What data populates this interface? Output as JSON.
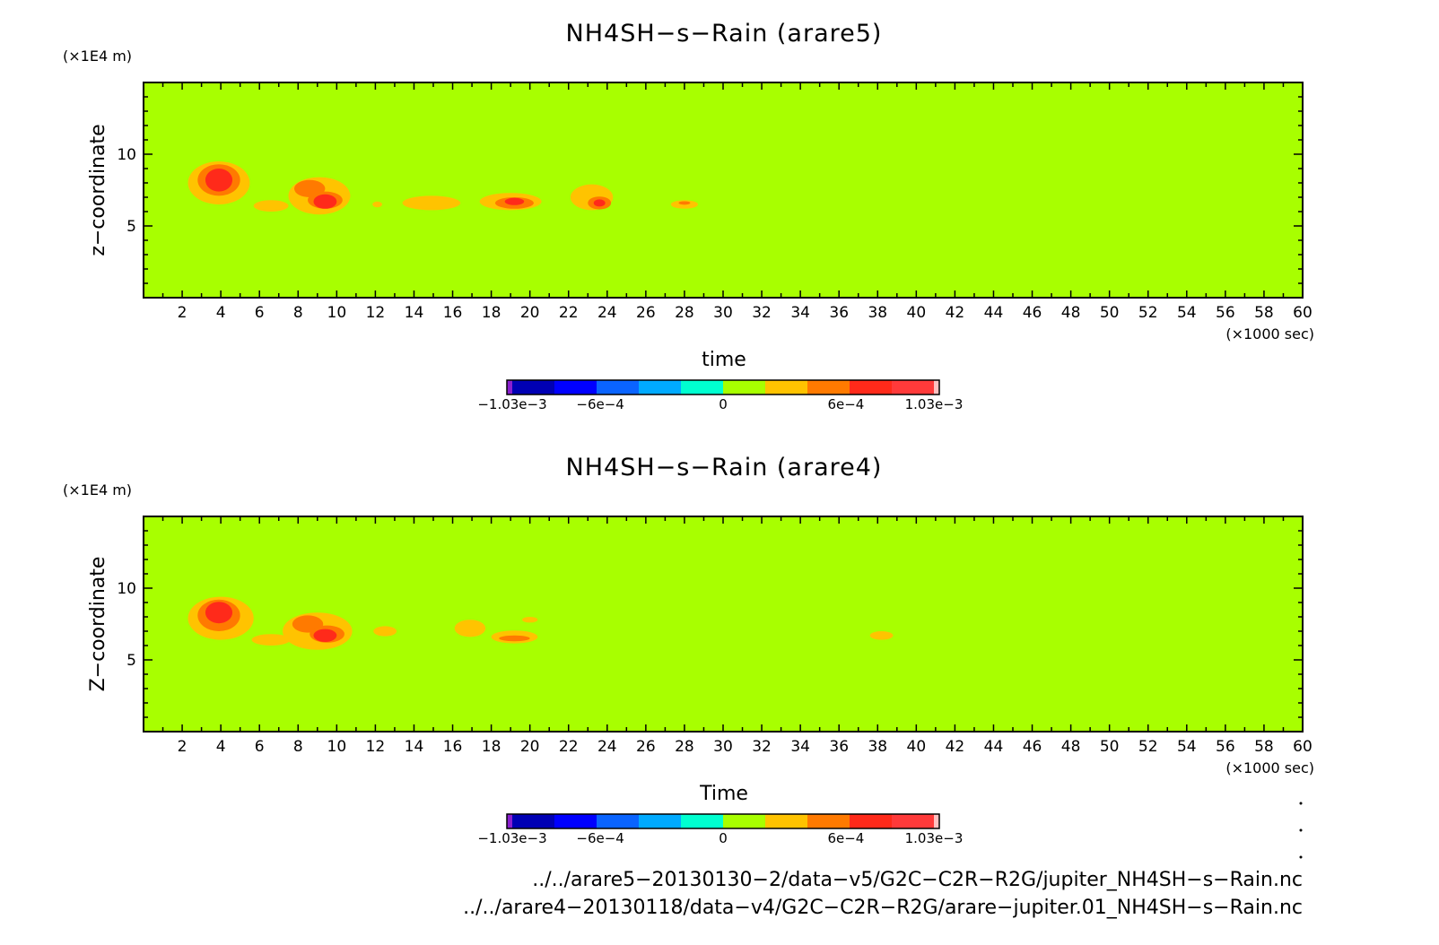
{
  "colors": {
    "background_field": "#a8ff00",
    "level_1": "#ffc300",
    "level_2": "#ff7a00",
    "level_3": "#ff2a1a",
    "level_4": "#e81b30"
  },
  "colorbar": {
    "colors": [
      "#8a1fcf",
      "#0000b4",
      "#0000ff",
      "#0a64ff",
      "#00aaff",
      "#00ffd0",
      "#a8ff00",
      "#ffc300",
      "#ff7a00",
      "#ff2a1a",
      "#ff3a3a",
      "#ffc0c0"
    ],
    "labels": [
      {
        "text": "−1.03e−3",
        "value": -0.00103
      },
      {
        "text": "−6e−4",
        "value": -0.0006
      },
      {
        "text": "0",
        "value": 0
      },
      {
        "text": "6e−4",
        "value": 0.0006
      },
      {
        "text": "1.03e−3",
        "value": 0.00103
      }
    ]
  },
  "chart_data": [
    {
      "type": "heatmap",
      "title": "NH4SH−s−Rain (arare5)",
      "xlabel": "time",
      "ylabel": "z−coordinate",
      "x_unit": "(×1000 sec)",
      "y_unit": "(×1E4 m)",
      "xlim": [
        0,
        60
      ],
      "ylim": [
        0,
        15
      ],
      "xticks": [
        2,
        4,
        6,
        8,
        10,
        12,
        14,
        16,
        18,
        20,
        22,
        24,
        26,
        28,
        30,
        32,
        34,
        36,
        38,
        40,
        42,
        44,
        46,
        48,
        50,
        52,
        54,
        56,
        58,
        60
      ],
      "yticks": [
        5,
        10
      ],
      "blobs": [
        {
          "level": 1,
          "x": 3.9,
          "y": 8.0,
          "rx": 1.6,
          "ry": 1.5
        },
        {
          "level": 2,
          "x": 3.9,
          "y": 8.2,
          "rx": 1.1,
          "ry": 1.1
        },
        {
          "level": 3,
          "x": 3.9,
          "y": 8.2,
          "rx": 0.7,
          "ry": 0.8
        },
        {
          "level": 1,
          "x": 6.6,
          "y": 6.4,
          "rx": 0.9,
          "ry": 0.4
        },
        {
          "level": 1,
          "x": 9.1,
          "y": 7.1,
          "rx": 1.6,
          "ry": 1.3
        },
        {
          "level": 2,
          "x": 8.6,
          "y": 7.6,
          "rx": 0.8,
          "ry": 0.6
        },
        {
          "level": 2,
          "x": 9.4,
          "y": 6.8,
          "rx": 0.9,
          "ry": 0.6
        },
        {
          "level": 3,
          "x": 9.4,
          "y": 6.7,
          "rx": 0.6,
          "ry": 0.5
        },
        {
          "level": 1,
          "x": 12.1,
          "y": 6.5,
          "rx": 0.25,
          "ry": 0.2
        },
        {
          "level": 1,
          "x": 14.9,
          "y": 6.6,
          "rx": 1.5,
          "ry": 0.5
        },
        {
          "level": 1,
          "x": 19.0,
          "y": 6.7,
          "rx": 1.6,
          "ry": 0.6
        },
        {
          "level": 2,
          "x": 19.2,
          "y": 6.6,
          "rx": 1.0,
          "ry": 0.4
        },
        {
          "level": 3,
          "x": 19.2,
          "y": 6.7,
          "rx": 0.5,
          "ry": 0.25
        },
        {
          "level": 1,
          "x": 23.2,
          "y": 7.0,
          "rx": 1.1,
          "ry": 0.9
        },
        {
          "level": 2,
          "x": 23.6,
          "y": 6.6,
          "rx": 0.6,
          "ry": 0.45
        },
        {
          "level": 3,
          "x": 23.6,
          "y": 6.6,
          "rx": 0.3,
          "ry": 0.25
        },
        {
          "level": 1,
          "x": 28.0,
          "y": 6.5,
          "rx": 0.7,
          "ry": 0.3
        },
        {
          "level": 2,
          "x": 28.0,
          "y": 6.6,
          "rx": 0.3,
          "ry": 0.12
        }
      ]
    },
    {
      "type": "heatmap",
      "title": "NH4SH−s−Rain (arare4)",
      "xlabel": "Time",
      "ylabel": "Z−coordinate",
      "x_unit": "(×1000 sec)",
      "y_unit": "(×1E4 m)",
      "xlim": [
        0,
        60
      ],
      "ylim": [
        0,
        15
      ],
      "xticks": [
        2,
        4,
        6,
        8,
        10,
        12,
        14,
        16,
        18,
        20,
        22,
        24,
        26,
        28,
        30,
        32,
        34,
        36,
        38,
        40,
        42,
        44,
        46,
        48,
        50,
        52,
        54,
        56,
        58,
        60
      ],
      "yticks": [
        5,
        10
      ],
      "blobs": [
        {
          "level": 1,
          "x": 4.0,
          "y": 7.9,
          "rx": 1.7,
          "ry": 1.5
        },
        {
          "level": 2,
          "x": 3.9,
          "y": 8.1,
          "rx": 1.1,
          "ry": 1.1
        },
        {
          "level": 3,
          "x": 3.9,
          "y": 8.3,
          "rx": 0.7,
          "ry": 0.75
        },
        {
          "level": 1,
          "x": 6.6,
          "y": 6.4,
          "rx": 1.0,
          "ry": 0.4
        },
        {
          "level": 1,
          "x": 9.0,
          "y": 7.0,
          "rx": 1.8,
          "ry": 1.3
        },
        {
          "level": 2,
          "x": 8.5,
          "y": 7.5,
          "rx": 0.8,
          "ry": 0.6
        },
        {
          "level": 2,
          "x": 9.5,
          "y": 6.8,
          "rx": 0.9,
          "ry": 0.6
        },
        {
          "level": 3,
          "x": 9.4,
          "y": 6.7,
          "rx": 0.6,
          "ry": 0.45
        },
        {
          "level": 1,
          "x": 12.5,
          "y": 7.0,
          "rx": 0.6,
          "ry": 0.35
        },
        {
          "level": 1,
          "x": 16.9,
          "y": 7.2,
          "rx": 0.8,
          "ry": 0.6
        },
        {
          "level": 1,
          "x": 19.2,
          "y": 6.6,
          "rx": 1.2,
          "ry": 0.45
        },
        {
          "level": 2,
          "x": 19.2,
          "y": 6.5,
          "rx": 0.8,
          "ry": 0.2
        },
        {
          "level": 1,
          "x": 20.0,
          "y": 7.8,
          "rx": 0.4,
          "ry": 0.2
        },
        {
          "level": 1,
          "x": 38.2,
          "y": 6.7,
          "rx": 0.6,
          "ry": 0.3
        }
      ]
    }
  ],
  "footer": {
    "file_1": "../../arare5−20130130−2/data−v5/G2C−C2R−R2G/jupiter_NH4SH−s−Rain.nc",
    "file_2": "../../arare4−20130118/data−v4/G2C−C2R−R2G/arare−jupiter.01_NH4SH−s−Rain.nc"
  }
}
